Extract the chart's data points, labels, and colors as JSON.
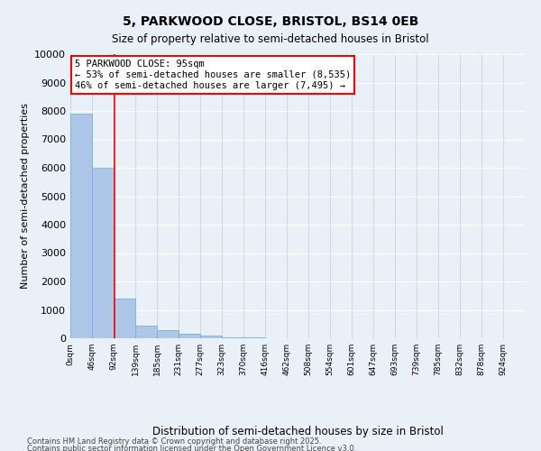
{
  "title1": "5, PARKWOOD CLOSE, BRISTOL, BS14 0EB",
  "title2": "Size of property relative to semi-detached houses in Bristol",
  "xlabel": "Distribution of semi-detached houses by size in Bristol",
  "ylabel": "Number of semi-detached properties",
  "bar_values": [
    7900,
    6000,
    1400,
    450,
    300,
    150,
    80,
    40,
    20,
    10,
    5,
    3,
    2,
    1,
    1,
    0,
    0,
    0,
    0,
    0
  ],
  "bin_labels": [
    "0sqm",
    "46sqm",
    "92sqm",
    "139sqm",
    "185sqm",
    "231sqm",
    "277sqm",
    "323sqm",
    "370sqm",
    "416sqm",
    "462sqm",
    "508sqm",
    "554sqm",
    "601sqm",
    "647sqm",
    "693sqm",
    "739sqm",
    "785sqm",
    "832sqm",
    "878sqm",
    "924sqm"
  ],
  "bar_color": "#aec6e8",
  "bar_edge_color": "#6aaad4",
  "property_line_x": 95,
  "annotation_title": "5 PARKWOOD CLOSE: 95sqm",
  "annotation_line1": "← 53% of semi-detached houses are smaller (8,535)",
  "annotation_line2": "46% of semi-detached houses are larger (7,495) →",
  "ylim": [
    0,
    10000
  ],
  "yticks": [
    0,
    1000,
    2000,
    3000,
    4000,
    5000,
    6000,
    7000,
    8000,
    9000,
    10000
  ],
  "bg_color": "#eaf0f8",
  "plot_bg_color": "#eaf0f8",
  "footer1": "Contains HM Land Registry data © Crown copyright and database right 2025.",
  "footer2": "Contains public sector information licensed under the Open Government Licence v3.0.",
  "bin_edges": [
    0,
    46,
    92,
    139,
    185,
    231,
    277,
    323,
    370,
    416,
    462,
    508,
    554,
    601,
    647,
    693,
    739,
    785,
    832,
    878,
    924
  ]
}
